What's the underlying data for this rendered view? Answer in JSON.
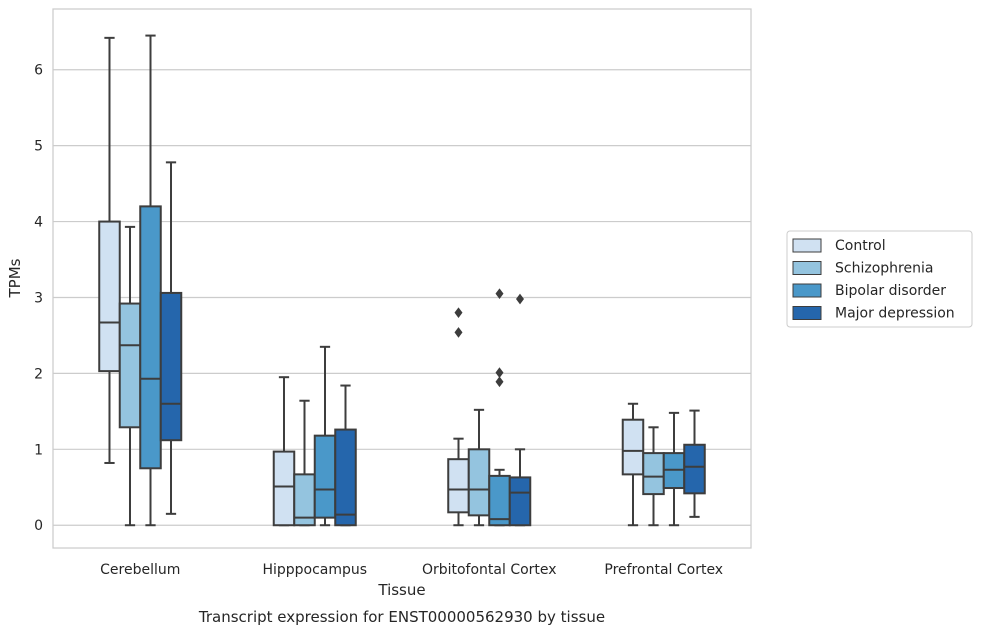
{
  "chart_data": {
    "type": "box",
    "caption": "Transcript expression for ENST00000562930 by tissue",
    "xlabel": "Tissue",
    "ylabel": "TPMs",
    "ylim": [
      -0.3,
      6.8
    ],
    "yticks": [
      0,
      1,
      2,
      3,
      4,
      5,
      6
    ],
    "grid": true,
    "legend_position": "right",
    "categories": [
      "Cerebellum",
      "Hipppocampus",
      "Orbitofontal Cortex",
      "Prefrontal Cortex"
    ],
    "series": [
      {
        "name": "Control",
        "color": "#d0e1f2",
        "boxes": [
          {
            "whisker_low": 0.82,
            "q1": 2.03,
            "median": 2.67,
            "q3": 4.0,
            "whisker_high": 6.42,
            "outliers": []
          },
          {
            "whisker_low": 0.0,
            "q1": 0.0,
            "median": 0.51,
            "q3": 0.97,
            "whisker_high": 1.95,
            "outliers": []
          },
          {
            "whisker_low": 0.0,
            "q1": 0.17,
            "median": 0.47,
            "q3": 0.87,
            "whisker_high": 1.14,
            "outliers": [
              2.54,
              2.8
            ]
          },
          {
            "whisker_low": 0.0,
            "q1": 0.67,
            "median": 0.98,
            "q3": 1.39,
            "whisker_high": 1.6,
            "outliers": []
          }
        ]
      },
      {
        "name": "Schizophrenia",
        "color": "#94c4df",
        "boxes": [
          {
            "whisker_low": 0.0,
            "q1": 1.29,
            "median": 2.37,
            "q3": 2.92,
            "whisker_high": 3.93,
            "outliers": []
          },
          {
            "whisker_low": 0.0,
            "q1": 0.0,
            "median": 0.1,
            "q3": 0.67,
            "whisker_high": 1.64,
            "outliers": []
          },
          {
            "whisker_low": 0.0,
            "q1": 0.13,
            "median": 0.47,
            "q3": 1.0,
            "whisker_high": 1.52,
            "outliers": []
          },
          {
            "whisker_low": 0.0,
            "q1": 0.41,
            "median": 0.64,
            "q3": 0.95,
            "whisker_high": 1.29,
            "outliers": []
          }
        ]
      },
      {
        "name": "Bipolar disorder",
        "color": "#4a98c9",
        "boxes": [
          {
            "whisker_low": 0.0,
            "q1": 0.75,
            "median": 1.93,
            "q3": 4.2,
            "whisker_high": 6.45,
            "outliers": []
          },
          {
            "whisker_low": 0.0,
            "q1": 0.1,
            "median": 0.47,
            "q3": 1.18,
            "whisker_high": 2.35,
            "outliers": []
          },
          {
            "whisker_low": 0.0,
            "q1": 0.0,
            "median": 0.08,
            "q3": 0.65,
            "whisker_high": 0.73,
            "outliers": [
              1.89,
              2.01,
              3.05
            ]
          },
          {
            "whisker_low": 0.0,
            "q1": 0.49,
            "median": 0.73,
            "q3": 0.95,
            "whisker_high": 1.48,
            "outliers": []
          }
        ]
      },
      {
        "name": "Major depression",
        "color": "#2566ac",
        "boxes": [
          {
            "whisker_low": 0.15,
            "q1": 1.12,
            "median": 1.6,
            "q3": 3.06,
            "whisker_high": 4.78,
            "outliers": []
          },
          {
            "whisker_low": 0.0,
            "q1": 0.0,
            "median": 0.14,
            "q3": 1.26,
            "whisker_high": 1.84,
            "outliers": []
          },
          {
            "whisker_low": 0.0,
            "q1": 0.0,
            "median": 0.43,
            "q3": 0.63,
            "whisker_high": 1.0,
            "outliers": [
              2.98
            ]
          },
          {
            "whisker_low": 0.11,
            "q1": 0.42,
            "median": 0.77,
            "q3": 1.06,
            "whisker_high": 1.51,
            "outliers": []
          }
        ]
      }
    ]
  }
}
